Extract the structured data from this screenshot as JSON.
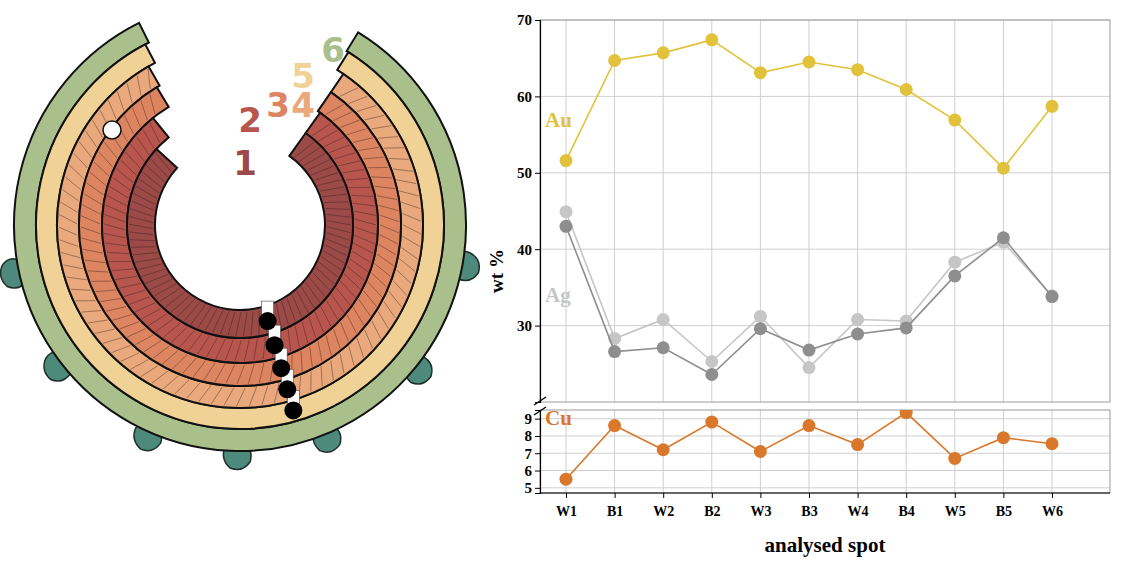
{
  "diagram": {
    "layers": [
      {
        "label": "1",
        "color": "#9c4a47"
      },
      {
        "label": "2",
        "color": "#b8564e"
      },
      {
        "label": "3",
        "color": "#dd8560"
      },
      {
        "label": "4",
        "color": "#e9a97c"
      },
      {
        "label": "5",
        "color": "#f1d296"
      },
      {
        "label": "6",
        "color": "#a9bf8c"
      }
    ]
  },
  "chart_data": [
    {
      "type": "line",
      "y_label": "wt %",
      "categories": [
        null,
        null,
        null,
        null,
        null,
        null,
        null,
        null,
        null,
        null,
        null
      ],
      "ylim": [
        20,
        70
      ],
      "yticks": [
        30,
        40,
        50,
        60,
        70
      ],
      "grid": true,
      "marker": "circle",
      "series": [
        {
          "name": "Au",
          "color": "#e2c23a",
          "values": [
            51.6,
            64.7,
            65.7,
            67.4,
            63.1,
            64.5,
            63.5,
            60.9,
            56.9,
            50.6,
            58.7
          ]
        },
        {
          "name": "Ag",
          "color": "#c6c6c6",
          "values": [
            44.9,
            28.3,
            30.8,
            25.3,
            31.2,
            24.5,
            30.8,
            30.6,
            38.3,
            40.9,
            33.9
          ]
        },
        {
          "color": "#8e8e8e",
          "values": [
            43.0,
            26.6,
            27.1,
            23.6,
            29.6,
            26.8,
            28.9,
            29.7,
            36.5,
            41.5,
            33.8
          ]
        }
      ]
    },
    {
      "type": "line",
      "x_label": "analysed spot",
      "categories": [
        "W1",
        "B1",
        "W2",
        "B2",
        "W3",
        "B3",
        "W4",
        "B4",
        "W5",
        "B5",
        "W6"
      ],
      "ylim": [
        4.7,
        9.5
      ],
      "yticks": [
        5,
        6,
        7,
        8,
        9
      ],
      "grid": true,
      "marker": "circle",
      "series": [
        {
          "name": "Cu",
          "color": "#d9782a",
          "values": [
            5.5,
            8.6,
            7.2,
            8.8,
            7.1,
            8.6,
            7.5,
            9.35,
            6.7,
            7.9,
            7.55
          ]
        }
      ]
    }
  ]
}
